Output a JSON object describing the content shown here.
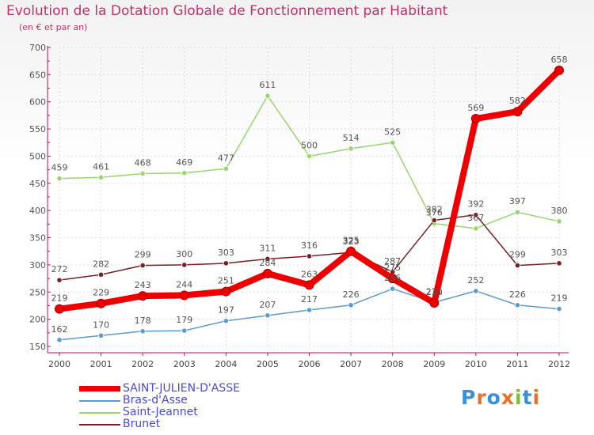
{
  "colors": {
    "title": "#c0306a",
    "axis": "#c01050",
    "grid": "#dcdcdc",
    "label": "#555555",
    "legend_text": "#4a4ad8"
  },
  "brand": {
    "text": "Proxiti"
  },
  "chart_data": {
    "type": "line",
    "title": "Evolution de la Dotation Globale de Fonctionnement par Habitant",
    "subtitle": "(en € et par an)",
    "xlabel": "",
    "ylabel": "",
    "categories": [
      "2000",
      "2001",
      "2002",
      "2003",
      "2004",
      "2005",
      "2006",
      "2007",
      "2008",
      "2009",
      "2010",
      "2011",
      "2012"
    ],
    "ylim": [
      150,
      700
    ],
    "yticks": [
      150,
      200,
      250,
      300,
      350,
      400,
      450,
      500,
      550,
      600,
      650,
      700
    ],
    "grid": true,
    "legend_position": "bottom-left",
    "series": [
      {
        "name": "SAINT-JULIEN-D'ASSE",
        "color": "#ee0000",
        "emphasis": true,
        "values": [
          219,
          229,
          243,
          244,
          251,
          284,
          263,
          325,
          275,
          230,
          569,
          582,
          658
        ]
      },
      {
        "name": "Bras-d'Asse",
        "color": "#5c9ad2",
        "emphasis": false,
        "values": [
          162,
          170,
          178,
          179,
          197,
          207,
          217,
          226,
          256,
          231,
          252,
          226,
          219
        ]
      },
      {
        "name": "Saint-Jeannet",
        "color": "#98d66e",
        "emphasis": false,
        "values": [
          459,
          461,
          468,
          469,
          477,
          611,
          500,
          514,
          525,
          376,
          367,
          397,
          380
        ]
      },
      {
        "name": "Brunet",
        "color": "#7a1f24",
        "emphasis": false,
        "values": [
          272,
          282,
          299,
          300,
          303,
          311,
          316,
          323,
          287,
          382,
          392,
          299,
          303
        ]
      }
    ]
  }
}
